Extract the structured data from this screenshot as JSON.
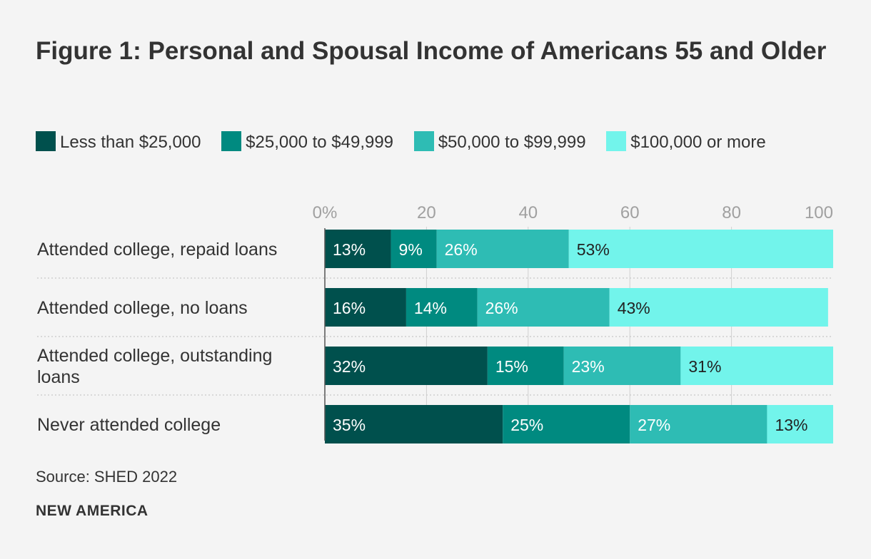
{
  "title": "Figure 1: Personal and Spousal Income of Americans 55 and Older",
  "source": "Source: SHED 2022",
  "brand": "NEW AMERICA",
  "chart_data": {
    "type": "bar",
    "orientation": "horizontal",
    "stacked": true,
    "title": "Figure 1: Personal and Spousal Income of Americans 55 and Older",
    "xlabel": "",
    "ylabel": "",
    "xlim": [
      0,
      100
    ],
    "x_ticks": [
      "0%",
      "20",
      "40",
      "60",
      "80",
      "100"
    ],
    "x_tick_values": [
      0,
      20,
      40,
      60,
      80,
      100
    ],
    "grid": true,
    "legend_position": "top",
    "categories": [
      [
        "Attended college, repaid loans"
      ],
      [
        "Attended college, no loans"
      ],
      [
        "Attended college, outstanding",
        "loans"
      ],
      [
        "Never attended college"
      ]
    ],
    "series": [
      {
        "name": "Less than $25,000",
        "color": "#00504d",
        "label_color": "#ffffff",
        "values": [
          13,
          16,
          32,
          35
        ]
      },
      {
        "name": "$25,000 to $49,999",
        "color": "#008a80",
        "label_color": "#ffffff",
        "values": [
          9,
          14,
          15,
          25
        ]
      },
      {
        "name": "$50,000 to $99,999",
        "color": "#2ebcb4",
        "label_color": "#ffffff",
        "values": [
          26,
          26,
          23,
          27
        ]
      },
      {
        "name": "$100,000 or more",
        "color": "#72f4eb",
        "label_color": "#222222",
        "values": [
          53,
          43,
          31,
          13
        ]
      }
    ],
    "data_labels": [
      [
        "13%",
        "9%",
        "26%",
        "53%"
      ],
      [
        "16%",
        "14%",
        "26%",
        "43%"
      ],
      [
        "32%",
        "15%",
        "23%",
        "31%"
      ],
      [
        "35%",
        "25%",
        "27%",
        "13%"
      ]
    ]
  }
}
